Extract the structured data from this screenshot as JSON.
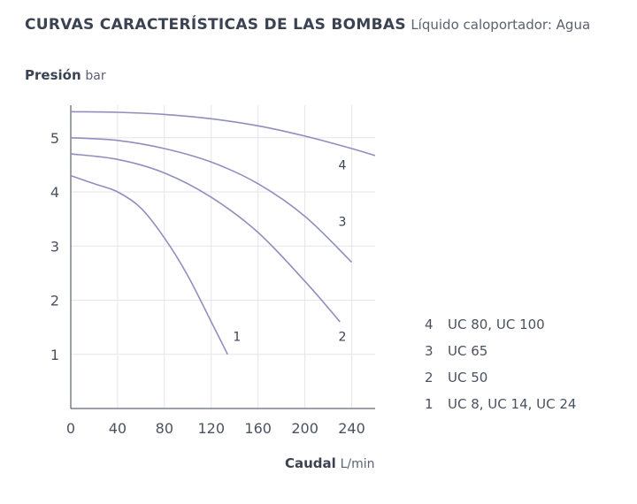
{
  "header": {
    "title": "CURVAS CARACTERÍSTICAS DE LAS BOMBAS",
    "subtitle": "Líquido caloportador: Agua"
  },
  "chart_data": {
    "type": "line",
    "title": "CURVAS CARACTERÍSTICAS DE LAS BOMBAS",
    "subtitle": "Líquido caloportador: Agua",
    "ylabel": "Presión",
    "yunit": "bar",
    "xlabel": "Caudal",
    "xunit": "L/min",
    "xlim": [
      0,
      260
    ],
    "ylim": [
      0,
      5.6
    ],
    "xticks": [
      0,
      40,
      80,
      120,
      160,
      200,
      240
    ],
    "yticks": [
      1,
      2,
      3,
      4,
      5
    ],
    "grid": true,
    "line_color": "#8f8fbf",
    "series": [
      {
        "name": "1",
        "label": "UC 8, UC 14, UC 24",
        "points": [
          [
            0,
            4.3
          ],
          [
            20,
            4.15
          ],
          [
            40,
            4.0
          ],
          [
            60,
            3.7
          ],
          [
            80,
            3.15
          ],
          [
            100,
            2.45
          ],
          [
            120,
            1.6
          ],
          [
            134,
            1.0
          ]
        ]
      },
      {
        "name": "2",
        "label": "UC 50",
        "points": [
          [
            0,
            4.7
          ],
          [
            40,
            4.6
          ],
          [
            80,
            4.35
          ],
          [
            120,
            3.9
          ],
          [
            160,
            3.25
          ],
          [
            200,
            2.35
          ],
          [
            230,
            1.6
          ]
        ]
      },
      {
        "name": "3",
        "label": "UC 65",
        "points": [
          [
            0,
            5.0
          ],
          [
            40,
            4.95
          ],
          [
            80,
            4.8
          ],
          [
            120,
            4.55
          ],
          [
            160,
            4.15
          ],
          [
            200,
            3.55
          ],
          [
            240,
            2.7
          ]
        ]
      },
      {
        "name": "4",
        "label": "UC 80, UC 100",
        "points": [
          [
            0,
            5.48
          ],
          [
            40,
            5.47
          ],
          [
            80,
            5.43
          ],
          [
            120,
            5.35
          ],
          [
            160,
            5.22
          ],
          [
            200,
            5.03
          ],
          [
            240,
            4.8
          ],
          [
            260,
            4.67
          ]
        ]
      }
    ],
    "legend_position": "right"
  },
  "legend": [
    {
      "num": "4",
      "label": "UC 80, UC 100"
    },
    {
      "num": "3",
      "label": "UC 65"
    },
    {
      "num": "2",
      "label": "UC 50"
    },
    {
      "num": "1",
      "label": "UC 8, UC 14, UC 24"
    }
  ]
}
